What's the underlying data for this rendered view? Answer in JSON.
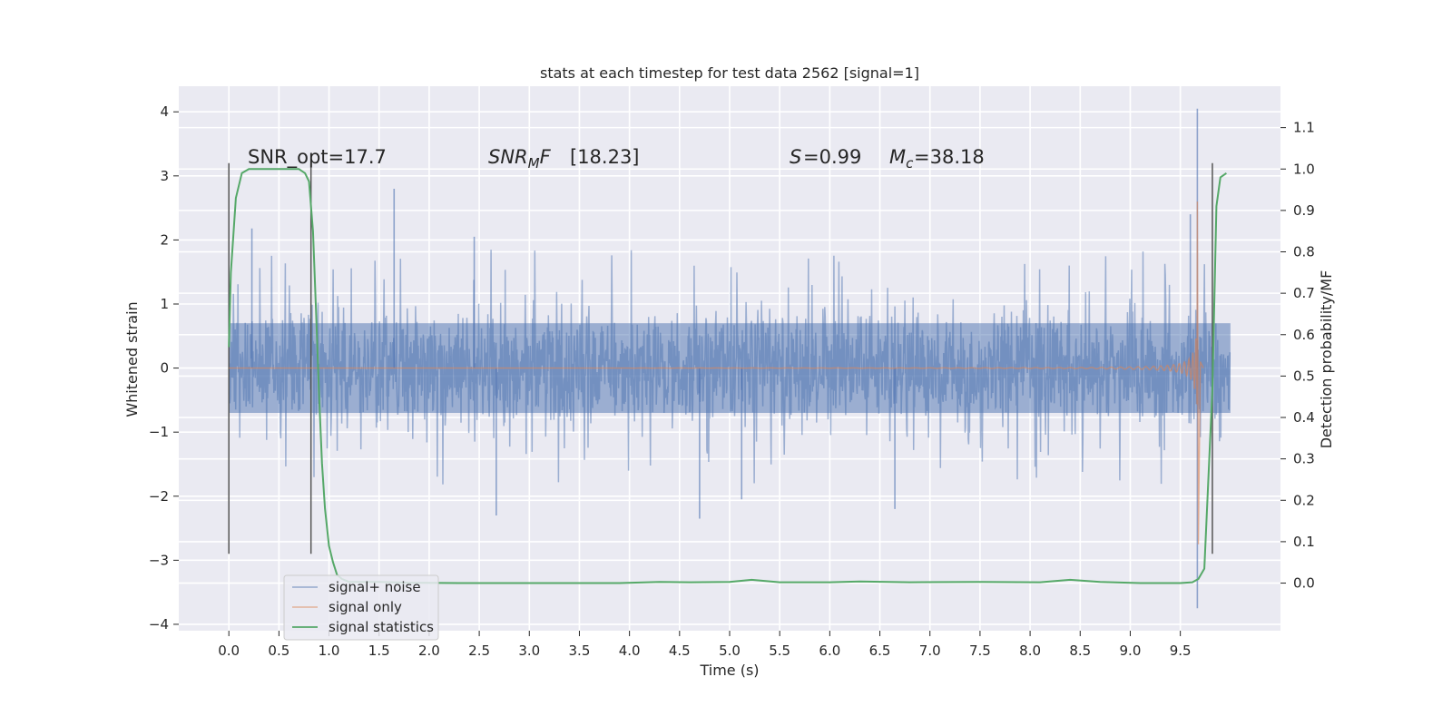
{
  "chart_data": {
    "type": "line",
    "title": "stats at each timestep for test data 2562 [signal=1]",
    "xlabel": "Time (s)",
    "ylabel": "Whitened strain",
    "y2label": "Detection probability/MF",
    "xlim": [
      -0.5,
      10.5
    ],
    "ylim": [
      -4.1,
      4.4
    ],
    "y2lim": [
      -0.115,
      1.2
    ],
    "x_ticks": [
      "0.0",
      "0.5",
      "1.0",
      "1.5",
      "2.0",
      "2.5",
      "3.0",
      "3.5",
      "4.0",
      "4.5",
      "5.0",
      "5.5",
      "6.0",
      "6.5",
      "7.0",
      "7.5",
      "8.0",
      "8.5",
      "9.0",
      "9.5"
    ],
    "y_ticks": [
      "4",
      "3",
      "2",
      "1",
      "0",
      "−1",
      "−2",
      "−3",
      "−4"
    ],
    "y2_ticks": [
      "1.1",
      "1.0",
      "0.9",
      "0.8",
      "0.7",
      "0.6",
      "0.5",
      "0.4",
      "0.3",
      "0.2",
      "0.1",
      "0.0"
    ],
    "grid": true,
    "legend_position": "lower-left",
    "annotations": {
      "snr_opt": "SNR_opt=17.7",
      "snr_mf": "[18.23]",
      "stat": "=0.99",
      "mc": "=38.18"
    },
    "vertical_markers": [
      {
        "x": 0.0,
        "y_from": -2.9,
        "y_to": 3.2
      },
      {
        "x": 0.82,
        "y_from": -2.9,
        "y_to": 3.2
      },
      {
        "x": 9.82,
        "y_from": -2.9,
        "y_to": 3.2
      }
    ],
    "series": [
      {
        "name": "signal+ noise",
        "color": "#4c72b0",
        "axis": "left",
        "x_range": [
          0.0,
          10.0
        ],
        "noise_band": [
          -0.7,
          0.7
        ],
        "peaks": [
          {
            "x": 0.23,
            "y": 2.18
          },
          {
            "x": 1.65,
            "y": 2.8
          },
          {
            "x": 2.45,
            "y": 2.05
          },
          {
            "x": 2.67,
            "y": -2.3
          },
          {
            "x": 4.7,
            "y": -2.35
          },
          {
            "x": 5.12,
            "y": -2.05
          },
          {
            "x": 6.65,
            "y": -2.2
          },
          {
            "x": 9.6,
            "y": 2.4
          },
          {
            "x": 9.67,
            "y": 4.05
          },
          {
            "x": 9.67,
            "y": -3.75
          }
        ]
      },
      {
        "name": "signal only",
        "color": "#dd8452",
        "axis": "left",
        "chirp_start": 4.0,
        "merger_time": 9.67,
        "peak_amplitude": 2.6,
        "min_amplitude": -2.75
      },
      {
        "name": "signal statistics",
        "color": "#55a868",
        "axis": "right",
        "x": [
          0.0,
          0.02,
          0.07,
          0.13,
          0.2,
          0.3,
          0.5,
          0.7,
          0.76,
          0.8,
          0.84,
          0.87,
          0.9,
          0.93,
          0.96,
          1.0,
          1.04,
          1.08,
          1.13,
          1.2,
          1.3,
          1.5,
          1.8,
          2.3,
          3.0,
          3.9,
          4.3,
          4.6,
          5.0,
          5.22,
          5.5,
          6.0,
          6.3,
          6.8,
          7.5,
          8.1,
          8.4,
          8.7,
          9.1,
          9.5,
          9.62,
          9.68,
          9.74,
          9.82,
          9.86,
          9.9,
          9.96
        ],
        "y": [
          0.57,
          0.75,
          0.93,
          0.99,
          1.0,
          1.0,
          1.0,
          1.0,
          0.99,
          0.97,
          0.85,
          0.66,
          0.46,
          0.29,
          0.18,
          0.09,
          0.05,
          0.02,
          0.01,
          0.003,
          0.003,
          0.003,
          0.001,
          0.0,
          0.0,
          0.0,
          0.003,
          0.002,
          0.003,
          0.008,
          0.002,
          0.002,
          0.004,
          0.002,
          0.003,
          0.002,
          0.008,
          0.003,
          0.0,
          0.0,
          0.002,
          0.01,
          0.035,
          0.47,
          0.91,
          0.98,
          0.99
        ]
      }
    ]
  }
}
